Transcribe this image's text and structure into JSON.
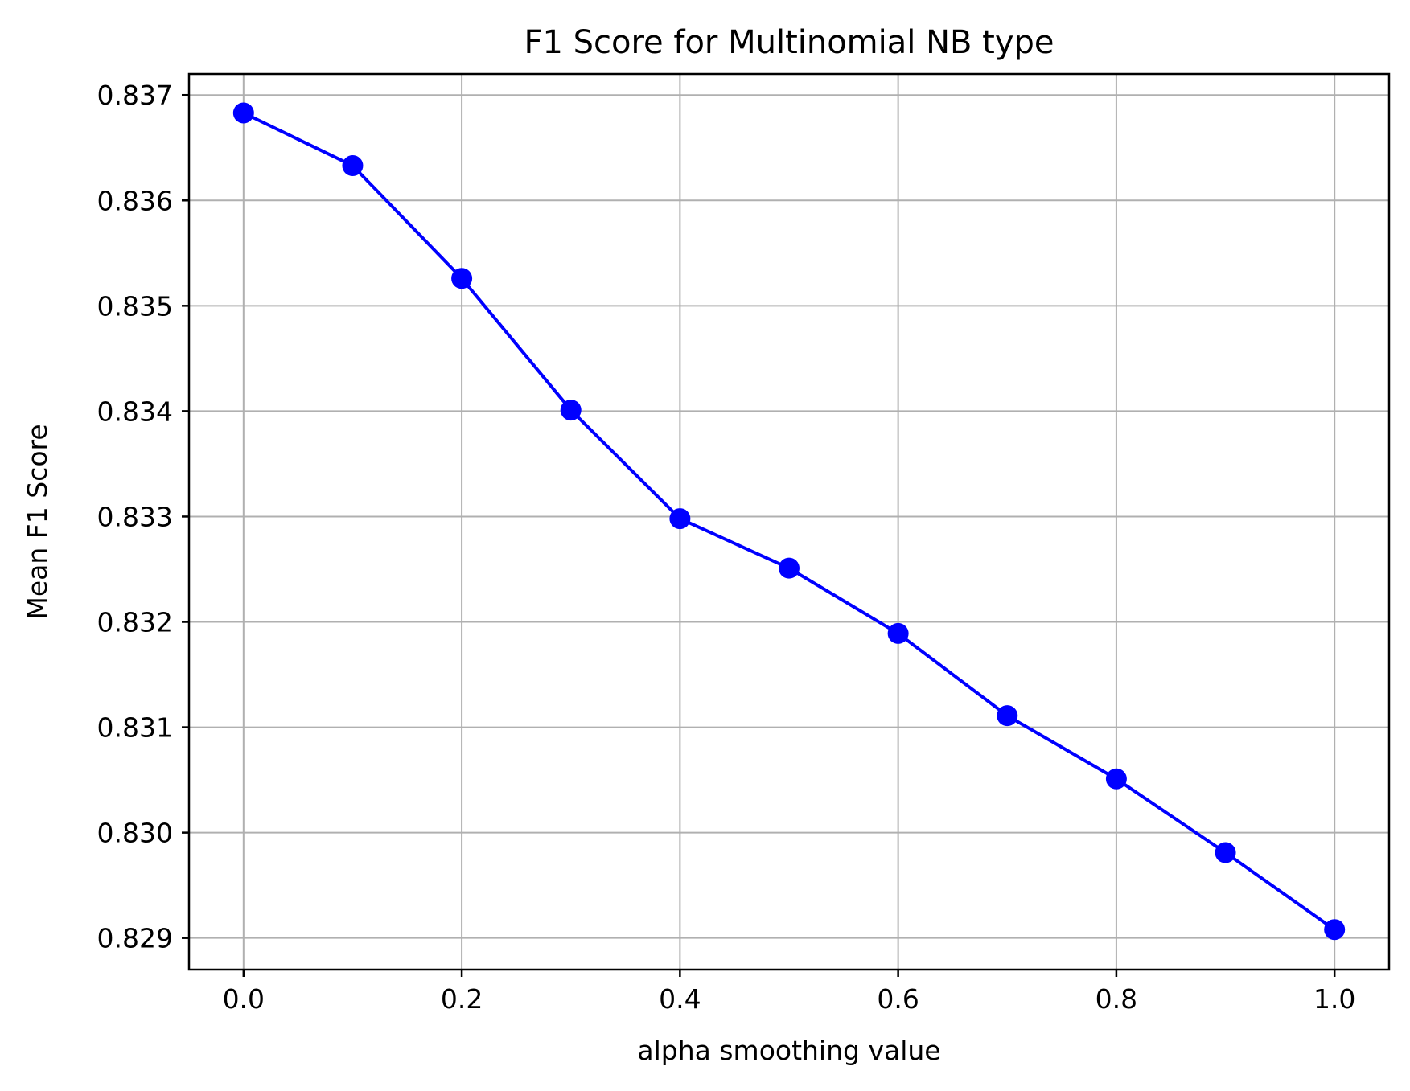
{
  "chart_data": {
    "type": "line",
    "title": "F1 Score for Multinomial NB type",
    "xlabel": "alpha smoothing value",
    "ylabel": "Mean F1 Score",
    "xlim": [
      -0.05,
      1.05
    ],
    "ylim": [
      0.8287,
      0.8372
    ],
    "x_ticks": [
      0.0,
      0.2,
      0.4,
      0.6,
      0.8,
      1.0
    ],
    "x_tick_labels": [
      "0.0",
      "0.2",
      "0.4",
      "0.6",
      "0.8",
      "1.0"
    ],
    "y_ticks": [
      0.829,
      0.83,
      0.831,
      0.832,
      0.833,
      0.834,
      0.835,
      0.836,
      0.837
    ],
    "y_tick_labels": [
      "0.829",
      "0.830",
      "0.831",
      "0.832",
      "0.833",
      "0.834",
      "0.835",
      "0.836",
      "0.837"
    ],
    "grid": true,
    "legend": false,
    "series": [
      {
        "color": "#0000ff",
        "marker": "circle",
        "x": [
          0.0,
          0.1,
          0.2,
          0.3,
          0.4,
          0.5,
          0.6,
          0.7,
          0.8,
          0.9,
          1.0
        ],
        "values": [
          0.83683,
          0.83633,
          0.83526,
          0.83401,
          0.83298,
          0.83251,
          0.83189,
          0.83111,
          0.83051,
          0.82981,
          0.82908
        ]
      }
    ]
  }
}
